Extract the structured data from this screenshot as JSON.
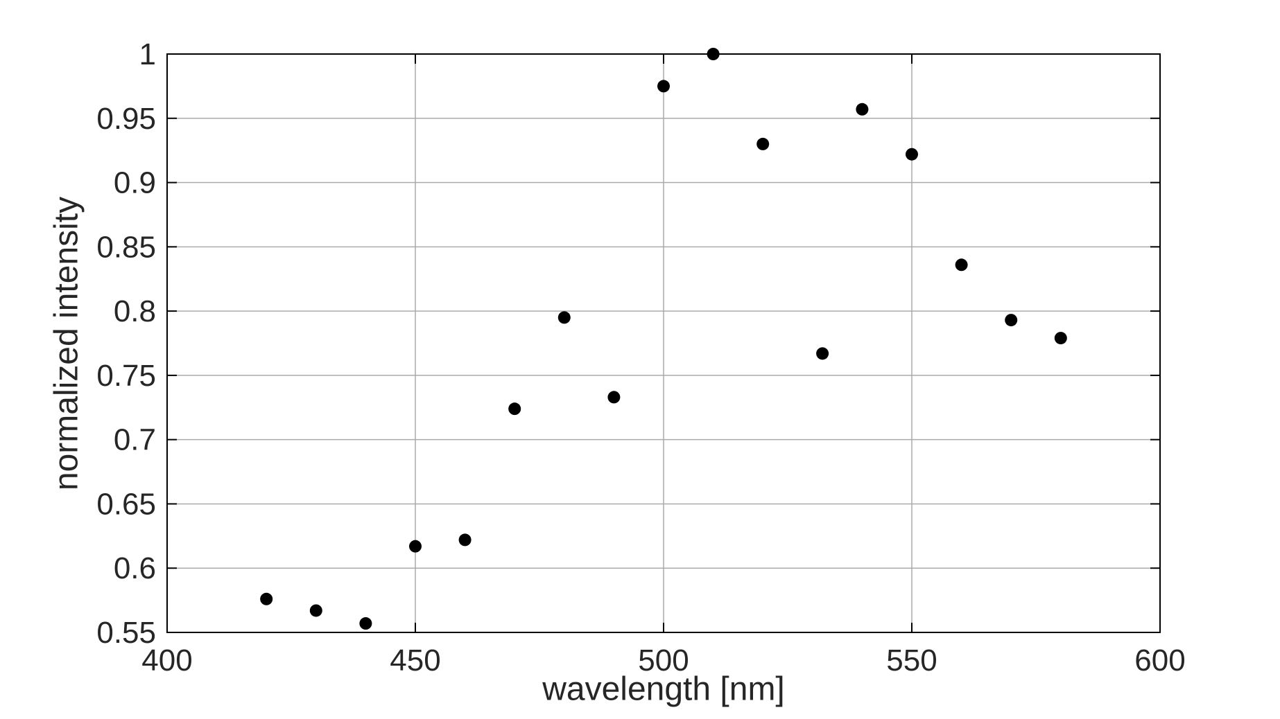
{
  "chart_data": {
    "type": "scatter",
    "title": "",
    "xlabel": "wavelength [nm]",
    "ylabel": "normalized intensity",
    "xlim": [
      400,
      600
    ],
    "ylim": [
      0.55,
      1.0
    ],
    "xticks": [
      400,
      450,
      500,
      550,
      600
    ],
    "xtick_labels": [
      "400",
      "450",
      "500",
      "550",
      "600"
    ],
    "yticks": [
      0.55,
      0.6,
      0.65,
      0.7,
      0.75,
      0.8,
      0.85,
      0.9,
      0.95,
      1.0
    ],
    "ytick_labels": [
      "0.55",
      "0.6",
      "0.65",
      "0.7",
      "0.75",
      "0.8",
      "0.85",
      "0.9",
      "0.95",
      "1"
    ],
    "grid": true,
    "legend_position": "none",
    "marker": {
      "shape": "circle",
      "color": "#000000",
      "radius_px": 9
    },
    "series": [
      {
        "name": "normalized intensity",
        "x": [
          420,
          430,
          440,
          450,
          460,
          470,
          480,
          490,
          500,
          510,
          520,
          532,
          540,
          550,
          560,
          570,
          580
        ],
        "y": [
          0.576,
          0.567,
          0.557,
          0.617,
          0.622,
          0.724,
          0.795,
          0.733,
          0.975,
          1.0,
          0.93,
          0.767,
          0.957,
          0.922,
          0.836,
          0.793,
          0.779
        ]
      }
    ]
  },
  "colors": {
    "background": "#ffffff",
    "frame": "#000000",
    "grid": "#aaaaaa",
    "tick": "#262626",
    "text": "#262626",
    "marker": "#000000"
  }
}
